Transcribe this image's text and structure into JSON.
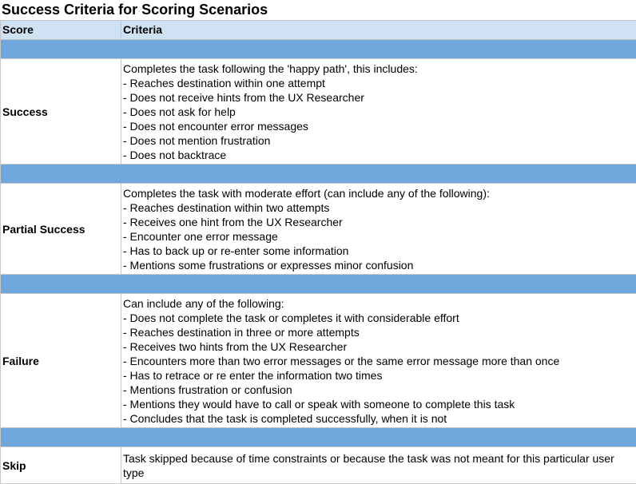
{
  "title": "Success Criteria for Scoring Scenarios",
  "table": {
    "headers": {
      "score": "Score",
      "criteria": "Criteria"
    },
    "rows": [
      {
        "score": "Success",
        "lines": [
          "Completes the task following the 'happy path', this includes:",
          "- Reaches destination within one attempt",
          "- Does not receive hints from the UX Researcher",
          "- Does not ask for help",
          "- Does not encounter error messages",
          "- Does not mention frustration",
          "- Does not backtrace"
        ]
      },
      {
        "score": "Partial Success",
        "lines": [
          "Completes the task with moderate effort (can include any of the following):",
          "- Reaches destination within two attempts",
          "- Receives one hint from the UX Researcher",
          "- Encounter one error message",
          "- Has to back up or re-enter some information",
          "- Mentions some frustrations or expresses minor confusion"
        ]
      },
      {
        "score": "Failure",
        "lines": [
          "Can include any of the following:",
          "- Does not complete the task or completes it with considerable effort",
          "- Reaches destination in three or more attempts",
          "- Receives two hints from the UX Researcher",
          "- Encounters more than two error messages or the same error message more than once",
          "- Has to retrace or re enter the information two times",
          "- Mentions frustration or confusion",
          "- Mentions they would have to call or speak with someone to complete this task",
          "- Concludes that the task is completed successfully, when it is not"
        ]
      },
      {
        "score": "Skip",
        "lines": [
          "Task skipped because of time constraints or because the  task was not meant for this particular user type"
        ]
      }
    ]
  },
  "colors": {
    "header_bg": "#cfe2f3",
    "band_bg": "#6fa8dc",
    "grid": "#c7c7c7"
  }
}
